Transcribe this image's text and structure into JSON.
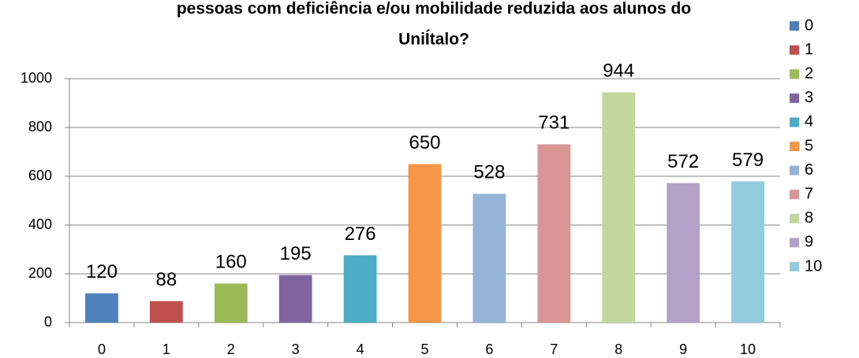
{
  "chart_data": {
    "type": "bar",
    "title": [
      "pessoas com deficiência e/ou mobilidade reduzida aos alunos do",
      "UniÍtalo?"
    ],
    "categories": [
      "0",
      "1",
      "2",
      "3",
      "4",
      "5",
      "6",
      "7",
      "8",
      "9",
      "10"
    ],
    "values": [
      120,
      88,
      160,
      195,
      276,
      650,
      528,
      731,
      944,
      572,
      579
    ],
    "colors": [
      "#4f81bd",
      "#c0504d",
      "#9bbb59",
      "#8064a2",
      "#4bacc6",
      "#f79646",
      "#95b3d7",
      "#d99694",
      "#c3d69b",
      "#b3a2c7",
      "#93cddd"
    ],
    "ylim": [
      0,
      1000
    ],
    "yticks": [
      0,
      200,
      400,
      600,
      800,
      1000
    ],
    "grid": true,
    "legend": "right"
  }
}
